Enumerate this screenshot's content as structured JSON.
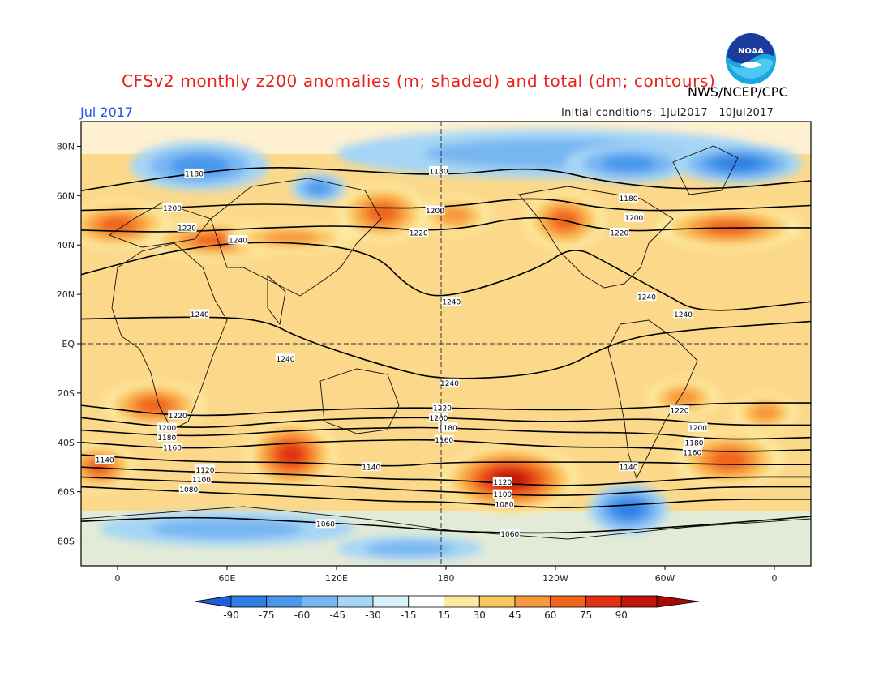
{
  "header": {
    "title": "CFSv2 monthly z200 anomalies (m; shaded) and total (dm; contours)",
    "agency": "NWS/NCEP/CPC",
    "month": "Jul 2017",
    "initial_conditions": "Initial conditions: 1Jul2017—10Jul2017",
    "logo_text": "NOAA"
  },
  "axes": {
    "lat_labels": [
      "80N",
      "60N",
      "40N",
      "20N",
      "EQ",
      "20S",
      "40S",
      "60S",
      "80S"
    ],
    "lon_labels": [
      "0",
      "60E",
      "120E",
      "180",
      "120W",
      "60W",
      "0"
    ]
  },
  "colorbar": {
    "ticks": [
      "-90",
      "-75",
      "-60",
      "-45",
      "-30",
      "-15",
      "15",
      "30",
      "45",
      "60",
      "75",
      "90"
    ],
    "colors": [
      "#1f5fd6",
      "#2e7fe3",
      "#4a98ec",
      "#78b6f2",
      "#a6d6f5",
      "#d7f1fa",
      "#ffffff",
      "#fde9a0",
      "#fbc660",
      "#f7983a",
      "#f0641c",
      "#e33012",
      "#c0140c",
      "#a60a05"
    ]
  },
  "anomaly_blobs": [
    {
      "lon": 45,
      "lat": 72,
      "rx": 38,
      "ry": 10,
      "level": -45
    },
    {
      "lon": 110,
      "lat": 63,
      "rx": 15,
      "ry": 6,
      "level": -45
    },
    {
      "lon": 240,
      "lat": 77,
      "rx": 120,
      "ry": 10,
      "level": -30
    },
    {
      "lon": 280,
      "lat": 73,
      "rx": 35,
      "ry": 8,
      "level": -45
    },
    {
      "lon": 340,
      "lat": 73,
      "rx": 35,
      "ry": 8,
      "level": -60
    },
    {
      "lon": 280,
      "lat": -67,
      "rx": 22,
      "ry": 10,
      "level": -60
    },
    {
      "lon": 60,
      "lat": -75,
      "rx": 70,
      "ry": 7,
      "level": -30
    },
    {
      "lon": 160,
      "lat": -83,
      "rx": 40,
      "ry": 5,
      "level": -30
    },
    {
      "lon": 0,
      "lat": 48,
      "rx": 30,
      "ry": 10,
      "level": 60
    },
    {
      "lon": 55,
      "lat": 42,
      "rx": 40,
      "ry": 8,
      "level": 60
    },
    {
      "lon": 95,
      "lat": 43,
      "rx": 35,
      "ry": 6,
      "level": 45
    },
    {
      "lon": 145,
      "lat": 53,
      "rx": 25,
      "ry": 12,
      "level": 60
    },
    {
      "lon": 185,
      "lat": 52,
      "rx": 20,
      "ry": 8,
      "level": 45
    },
    {
      "lon": 245,
      "lat": 50,
      "rx": 22,
      "ry": 12,
      "level": 60
    },
    {
      "lon": 335,
      "lat": 47,
      "rx": 40,
      "ry": 9,
      "level": 60
    },
    {
      "lon": 20,
      "lat": -25,
      "rx": 28,
      "ry": 10,
      "level": 60
    },
    {
      "lon": 95,
      "lat": -45,
      "rx": 25,
      "ry": 15,
      "level": 75
    },
    {
      "lon": 215,
      "lat": -55,
      "rx": 38,
      "ry": 14,
      "level": 90
    },
    {
      "lon": 310,
      "lat": -22,
      "rx": 20,
      "ry": 8,
      "level": 45
    },
    {
      "lon": 335,
      "lat": -47,
      "rx": 30,
      "ry": 12,
      "level": 60
    },
    {
      "lon": 355,
      "lat": -28,
      "rx": 18,
      "ry": 8,
      "level": 45
    },
    {
      "lon": -10,
      "lat": -50,
      "rx": 20,
      "ry": 10,
      "level": 60
    }
  ],
  "contours": [
    {
      "label": "1180",
      "points": [
        [
          -20,
          62
        ],
        [
          30,
          68
        ],
        [
          80,
          72
        ],
        [
          130,
          70
        ],
        [
          180,
          68
        ],
        [
          230,
          72
        ],
        [
          270,
          65
        ],
        [
          320,
          62
        ],
        [
          380,
          66
        ]
      ]
    },
    {
      "label": "1200",
      "points": [
        [
          -20,
          54
        ],
        [
          30,
          55
        ],
        [
          80,
          57
        ],
        [
          130,
          55
        ],
        [
          180,
          55
        ],
        [
          230,
          60
        ],
        [
          270,
          54
        ],
        [
          320,
          54
        ],
        [
          380,
          56
        ]
      ]
    },
    {
      "label": "1220",
      "points": [
        [
          -20,
          46
        ],
        [
          30,
          45
        ],
        [
          80,
          47
        ],
        [
          130,
          48
        ],
        [
          180,
          45
        ],
        [
          230,
          53
        ],
        [
          270,
          45
        ],
        [
          320,
          47
        ],
        [
          380,
          47
        ]
      ]
    },
    {
      "label": "1240",
      "points": [
        [
          -20,
          28
        ],
        [
          30,
          38
        ],
        [
          80,
          42
        ],
        [
          140,
          38
        ],
        [
          160,
          22
        ],
        [
          180,
          18
        ],
        [
          230,
          30
        ],
        [
          250,
          40
        ],
        [
          270,
          32
        ],
        [
          300,
          20
        ],
        [
          320,
          12
        ],
        [
          380,
          17
        ]
      ]
    },
    {
      "label": "1240",
      "points": [
        [
          -20,
          10
        ],
        [
          40,
          11
        ],
        [
          80,
          10
        ],
        [
          100,
          2
        ],
        [
          150,
          -10
        ],
        [
          180,
          -15
        ],
        [
          240,
          -12
        ],
        [
          270,
          0
        ],
        [
          300,
          5
        ],
        [
          380,
          9
        ]
      ]
    },
    {
      "label": "1220",
      "points": [
        [
          -20,
          -25
        ],
        [
          40,
          -30
        ],
        [
          100,
          -27
        ],
        [
          150,
          -26
        ],
        [
          180,
          -26
        ],
        [
          240,
          -27
        ],
        [
          290,
          -26
        ],
        [
          330,
          -24
        ],
        [
          380,
          -24
        ]
      ]
    },
    {
      "label": "1200",
      "points": [
        [
          -20,
          -30
        ],
        [
          40,
          -35
        ],
        [
          100,
          -31
        ],
        [
          150,
          -30
        ],
        [
          180,
          -30
        ],
        [
          240,
          -32
        ],
        [
          290,
          -30
        ],
        [
          330,
          -33
        ],
        [
          380,
          -33
        ]
      ]
    },
    {
      "label": "1180",
      "points": [
        [
          -20,
          -35
        ],
        [
          40,
          -38
        ],
        [
          100,
          -35
        ],
        [
          150,
          -34
        ],
        [
          180,
          -34
        ],
        [
          240,
          -36
        ],
        [
          290,
          -36
        ],
        [
          330,
          -39
        ],
        [
          380,
          -38
        ]
      ]
    },
    {
      "label": "1160",
      "points": [
        [
          -20,
          -40
        ],
        [
          40,
          -43
        ],
        [
          100,
          -40
        ],
        [
          150,
          -39
        ],
        [
          180,
          -39
        ],
        [
          240,
          -42
        ],
        [
          290,
          -42
        ],
        [
          330,
          -44
        ],
        [
          380,
          -43
        ]
      ]
    },
    {
      "label": "1140",
      "points": [
        [
          -20,
          -45
        ],
        [
          40,
          -48
        ],
        [
          100,
          -48
        ],
        [
          150,
          -50
        ],
        [
          180,
          -48
        ],
        [
          240,
          -48
        ],
        [
          290,
          -48
        ],
        [
          330,
          -49
        ],
        [
          380,
          -49
        ]
      ]
    },
    {
      "label": "1120",
      "points": [
        [
          -20,
          -50
        ],
        [
          40,
          -52
        ],
        [
          100,
          -53
        ],
        [
          150,
          -55
        ],
        [
          180,
          -55
        ],
        [
          240,
          -58
        ],
        [
          290,
          -56
        ],
        [
          330,
          -54
        ],
        [
          380,
          -54
        ]
      ]
    },
    {
      "label": "1100",
      "points": [
        [
          -20,
          -54
        ],
        [
          40,
          -56
        ],
        [
          100,
          -57
        ],
        [
          150,
          -59
        ],
        [
          180,
          -60
        ],
        [
          240,
          -62
        ],
        [
          290,
          -60
        ],
        [
          330,
          -58
        ],
        [
          380,
          -58
        ]
      ]
    },
    {
      "label": "1080",
      "points": [
        [
          -20,
          -58
        ],
        [
          40,
          -60
        ],
        [
          100,
          -62
        ],
        [
          150,
          -64
        ],
        [
          180,
          -64
        ],
        [
          240,
          -67
        ],
        [
          290,
          -65
        ],
        [
          330,
          -63
        ],
        [
          380,
          -63
        ]
      ]
    },
    {
      "label": "1060",
      "points": [
        [
          -20,
          -72
        ],
        [
          40,
          -70
        ],
        [
          100,
          -72
        ],
        [
          150,
          -74
        ],
        [
          180,
          -76
        ],
        [
          240,
          -77
        ],
        [
          290,
          -75
        ],
        [
          330,
          -73
        ],
        [
          380,
          -70
        ]
      ]
    }
  ],
  "contour_labels": [
    {
      "text": "1180",
      "lon": 42,
      "lat": 69
    },
    {
      "text": "1180",
      "lon": 176,
      "lat": 70
    },
    {
      "text": "1180",
      "lon": 280,
      "lat": 59
    },
    {
      "text": "1200",
      "lon": 30,
      "lat": 55
    },
    {
      "text": "1200",
      "lon": 174,
      "lat": 54
    },
    {
      "text": "1200",
      "lon": 283,
      "lat": 51
    },
    {
      "text": "1220",
      "lon": 38,
      "lat": 47
    },
    {
      "text": "1220",
      "lon": 165,
      "lat": 45
    },
    {
      "text": "1220",
      "lon": 275,
      "lat": 45
    },
    {
      "text": "1240",
      "lon": 66,
      "lat": 42
    },
    {
      "text": "1240",
      "lon": 183,
      "lat": 17
    },
    {
      "text": "1240",
      "lon": 290,
      "lat": 19
    },
    {
      "text": "1240",
      "lon": 310,
      "lat": 12
    },
    {
      "text": "1240",
      "lon": 45,
      "lat": 12
    },
    {
      "text": "1240",
      "lon": 92,
      "lat": -6
    },
    {
      "text": "1240",
      "lon": 182,
      "lat": -16
    },
    {
      "text": "1220",
      "lon": 33,
      "lat": -29
    },
    {
      "text": "1220",
      "lon": 178,
      "lat": -26
    },
    {
      "text": "1220",
      "lon": 308,
      "lat": -27
    },
    {
      "text": "1200",
      "lon": 27,
      "lat": -34
    },
    {
      "text": "1200",
      "lon": 176,
      "lat": -30
    },
    {
      "text": "1200",
      "lon": 318,
      "lat": -34
    },
    {
      "text": "1180",
      "lon": 27,
      "lat": -38
    },
    {
      "text": "1180",
      "lon": 181,
      "lat": -34
    },
    {
      "text": "1180",
      "lon": 316,
      "lat": -40
    },
    {
      "text": "1160",
      "lon": 30,
      "lat": -42
    },
    {
      "text": "1160",
      "lon": 179,
      "lat": -39
    },
    {
      "text": "1160",
      "lon": 315,
      "lat": -44
    },
    {
      "text": "1140",
      "lon": -7,
      "lat": -47
    },
    {
      "text": "1140",
      "lon": 139,
      "lat": -50
    },
    {
      "text": "1140",
      "lon": 280,
      "lat": -50
    },
    {
      "text": "1120",
      "lon": 48,
      "lat": -51
    },
    {
      "text": "1120",
      "lon": 211,
      "lat": -56
    },
    {
      "text": "1100",
      "lon": 46,
      "lat": -55
    },
    {
      "text": "1100",
      "lon": 211,
      "lat": -61
    },
    {
      "text": "1080",
      "lon": 39,
      "lat": -59
    },
    {
      "text": "1080",
      "lon": 212,
      "lat": -65
    },
    {
      "text": "1060",
      "lon": 114,
      "lat": -73
    },
    {
      "text": "1060",
      "lon": 215,
      "lat": -77
    }
  ]
}
